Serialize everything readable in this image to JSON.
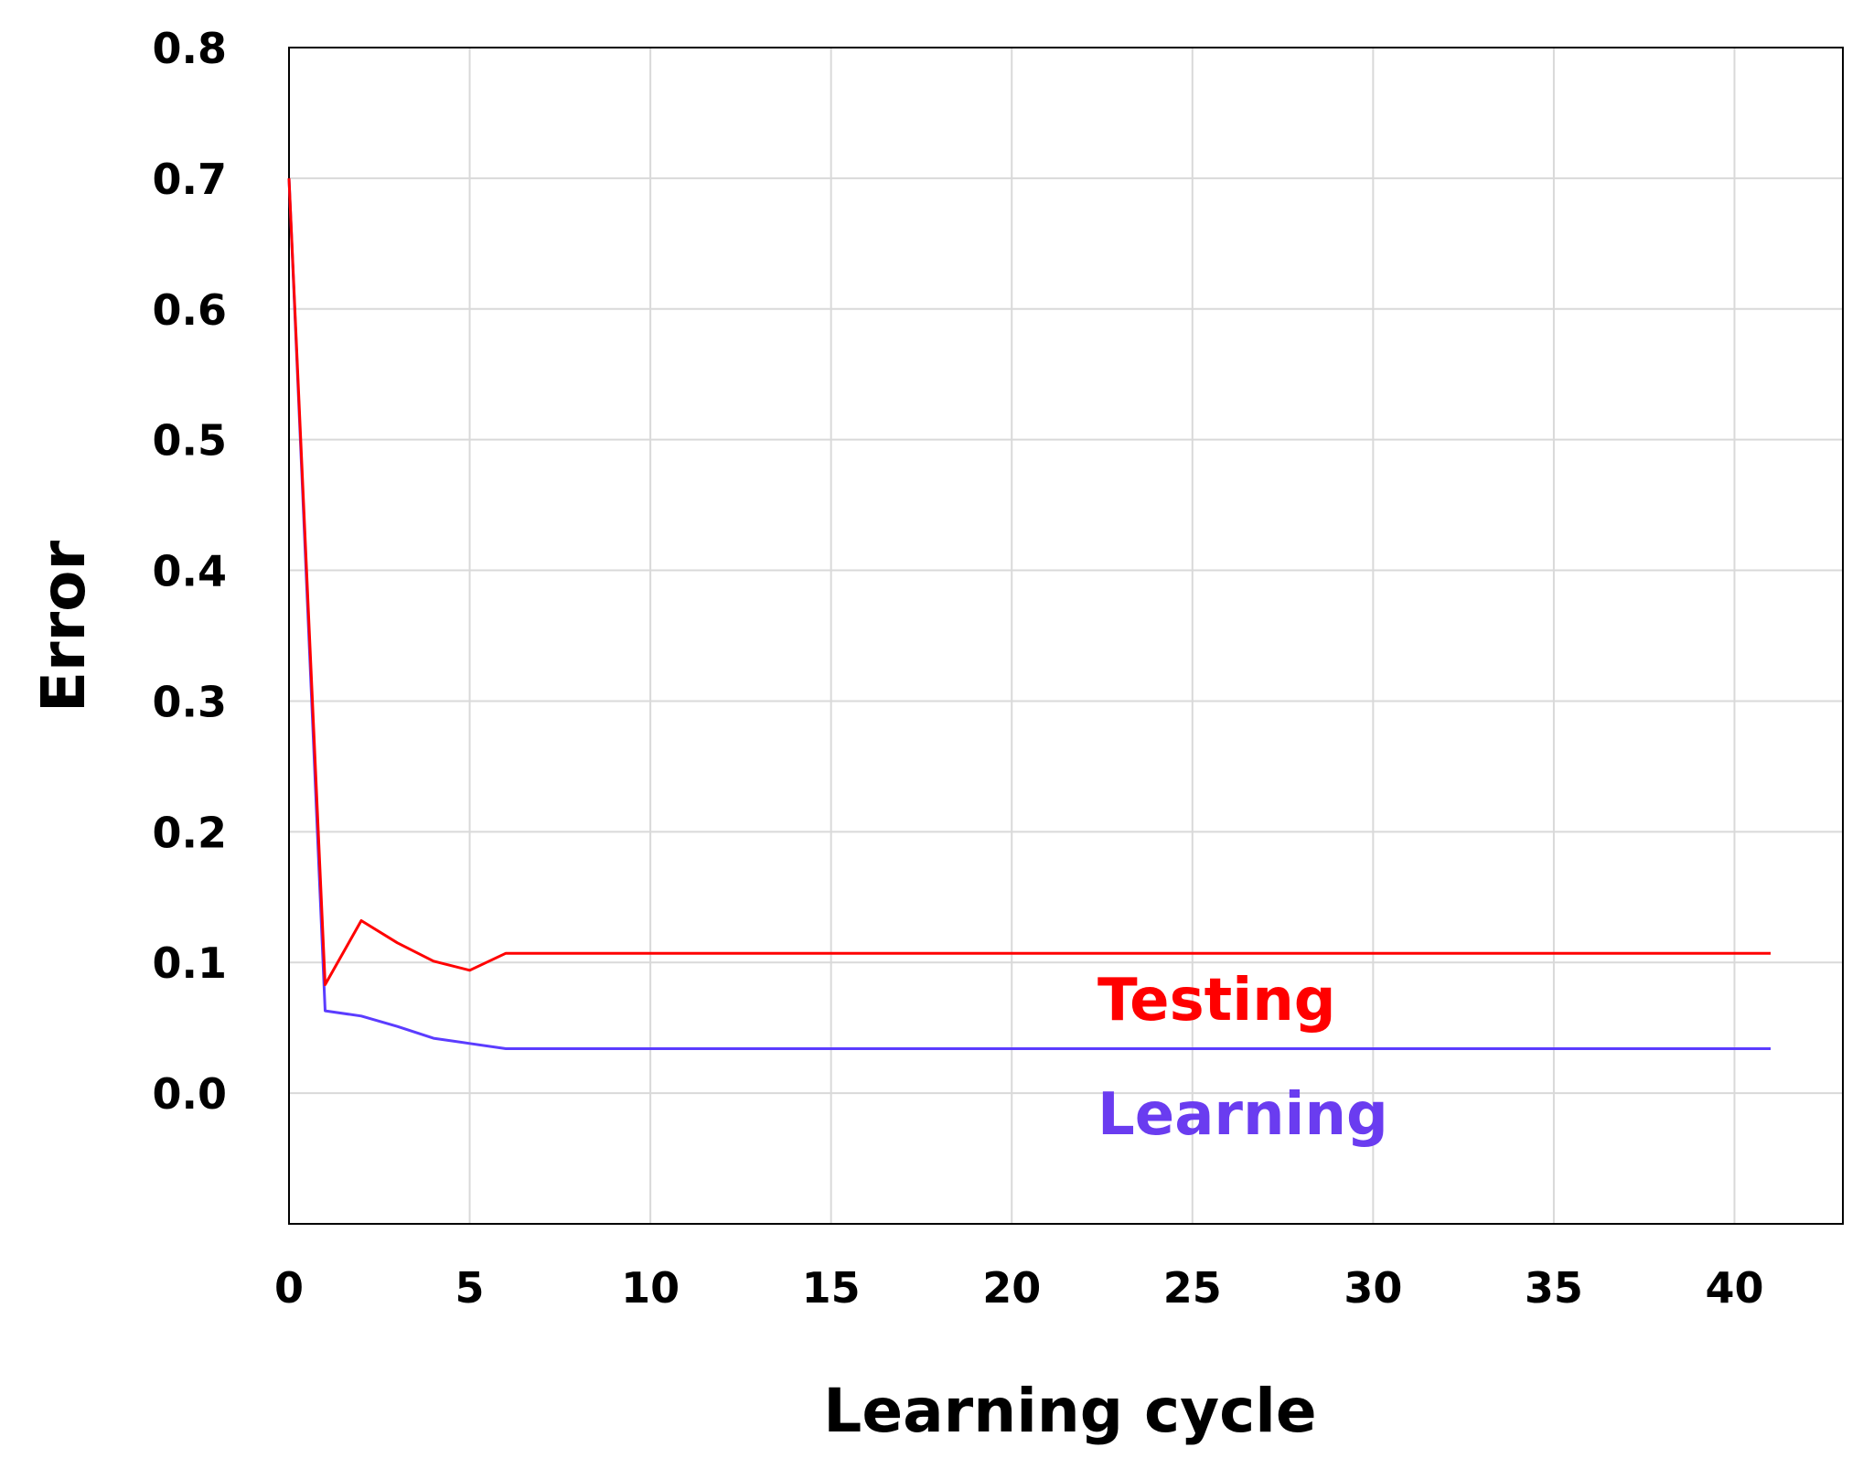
{
  "chart_data": {
    "type": "line",
    "xlabel": "Learning cycle",
    "ylabel": "Error",
    "xlim": [
      0,
      43
    ],
    "ylim": [
      -0.1,
      0.8
    ],
    "xticks": [
      "0",
      "5",
      "10",
      "15",
      "20",
      "25",
      "30",
      "35",
      "40"
    ],
    "yticks": [
      "0.0",
      "0.1",
      "0.2",
      "0.3",
      "0.4",
      "0.5",
      "0.6",
      "0.7",
      "0.8"
    ],
    "grid": true,
    "series": [
      {
        "name": "Testing",
        "color": "#ff0000",
        "x": [
          0,
          1,
          2,
          3,
          4,
          5,
          6,
          41
        ],
        "y": [
          0.7,
          0.083,
          0.132,
          0.115,
          0.101,
          0.094,
          0.107,
          0.107
        ]
      },
      {
        "name": "Learning",
        "color": "#5b3cff",
        "x": [
          0,
          1,
          2,
          3,
          4,
          5,
          6,
          41
        ],
        "y": [
          0.7,
          0.063,
          0.059,
          0.051,
          0.042,
          0.038,
          0.034,
          0.034
        ]
      }
    ]
  }
}
